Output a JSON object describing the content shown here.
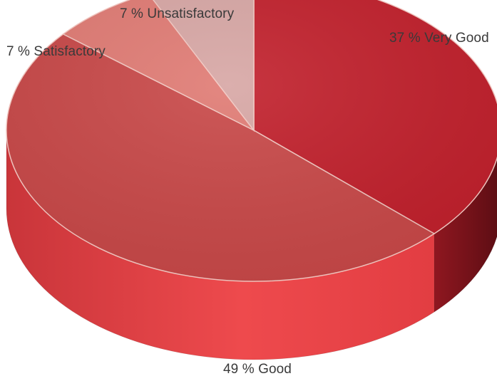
{
  "chart_data": {
    "type": "pie",
    "title": "",
    "slices": [
      {
        "label": "Very Good",
        "value": 37,
        "display": "37 % Very Good",
        "color": "#c11f2b"
      },
      {
        "label": "Good",
        "value": 49,
        "display": "49 % Good",
        "color": "#c84747"
      },
      {
        "label": "Satisfactory",
        "value": 7,
        "display": "7 % Satisfactory",
        "color": "#e07a73"
      },
      {
        "label": "Unsatisfactory",
        "value": 7,
        "display": "7 % Unsatisfactory",
        "color": "#d7a6a4"
      }
    ]
  }
}
